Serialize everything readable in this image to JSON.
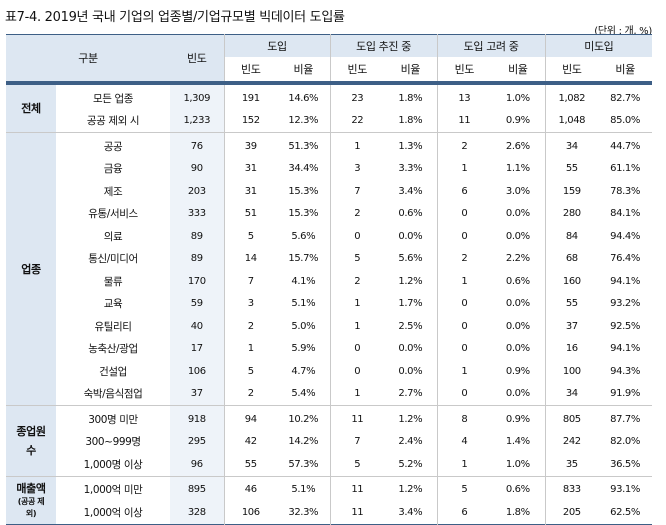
{
  "title": "표7-4. 2019년 국내 기업의 업종별/기업규모별 빅데이터 도입률",
  "unit": "(단위 : 개, %)",
  "header": {
    "category": "구분",
    "total": "빈도",
    "groups": [
      "도입",
      "도입 추진 중",
      "도입 고려 중",
      "미도입"
    ],
    "sub": [
      "빈도",
      "비율"
    ]
  },
  "sections": [
    {
      "name": "전체",
      "note": "",
      "rows": [
        {
          "label": "모든 업종",
          "n": "1,309",
          "v": [
            "191",
            "14.6%",
            "23",
            "1.8%",
            "13",
            "1.0%",
            "1,082",
            "82.7%"
          ]
        },
        {
          "label": "공공 제외 시",
          "n": "1,233",
          "v": [
            "152",
            "12.3%",
            "22",
            "1.8%",
            "11",
            "0.9%",
            "1,048",
            "85.0%"
          ]
        }
      ]
    },
    {
      "name": "업종",
      "note": "",
      "rows": [
        {
          "label": "공공",
          "n": "76",
          "v": [
            "39",
            "51.3%",
            "1",
            "1.3%",
            "2",
            "2.6%",
            "34",
            "44.7%"
          ]
        },
        {
          "label": "금융",
          "n": "90",
          "v": [
            "31",
            "34.4%",
            "3",
            "3.3%",
            "1",
            "1.1%",
            "55",
            "61.1%"
          ]
        },
        {
          "label": "제조",
          "n": "203",
          "v": [
            "31",
            "15.3%",
            "7",
            "3.4%",
            "6",
            "3.0%",
            "159",
            "78.3%"
          ]
        },
        {
          "label": "유통/서비스",
          "n": "333",
          "v": [
            "51",
            "15.3%",
            "2",
            "0.6%",
            "0",
            "0.0%",
            "280",
            "84.1%"
          ]
        },
        {
          "label": "의료",
          "n": "89",
          "v": [
            "5",
            "5.6%",
            "0",
            "0.0%",
            "0",
            "0.0%",
            "84",
            "94.4%"
          ]
        },
        {
          "label": "통신/미디어",
          "n": "89",
          "v": [
            "14",
            "15.7%",
            "5",
            "5.6%",
            "2",
            "2.2%",
            "68",
            "76.4%"
          ]
        },
        {
          "label": "물류",
          "n": "170",
          "v": [
            "7",
            "4.1%",
            "2",
            "1.2%",
            "1",
            "0.6%",
            "160",
            "94.1%"
          ]
        },
        {
          "label": "교육",
          "n": "59",
          "v": [
            "3",
            "5.1%",
            "1",
            "1.7%",
            "0",
            "0.0%",
            "55",
            "93.2%"
          ]
        },
        {
          "label": "유틸리티",
          "n": "40",
          "v": [
            "2",
            "5.0%",
            "1",
            "2.5%",
            "0",
            "0.0%",
            "37",
            "92.5%"
          ]
        },
        {
          "label": "농축산/광업",
          "n": "17",
          "v": [
            "1",
            "5.9%",
            "0",
            "0.0%",
            "0",
            "0.0%",
            "16",
            "94.1%"
          ]
        },
        {
          "label": "건설업",
          "n": "106",
          "v": [
            "5",
            "4.7%",
            "0",
            "0.0%",
            "1",
            "0.9%",
            "100",
            "94.3%"
          ]
        },
        {
          "label": "숙박/음식점업",
          "n": "37",
          "v": [
            "2",
            "5.4%",
            "1",
            "2.7%",
            "0",
            "0.0%",
            "34",
            "91.9%"
          ]
        }
      ]
    },
    {
      "name": "종업원수",
      "note": "",
      "rows": [
        {
          "label": "300명 미만",
          "n": "918",
          "v": [
            "94",
            "10.2%",
            "11",
            "1.2%",
            "8",
            "0.9%",
            "805",
            "87.7%"
          ]
        },
        {
          "label": "300~999명",
          "n": "295",
          "v": [
            "42",
            "14.2%",
            "7",
            "2.4%",
            "4",
            "1.4%",
            "242",
            "82.0%"
          ]
        },
        {
          "label": "1,000명 이상",
          "n": "96",
          "v": [
            "55",
            "57.3%",
            "5",
            "5.2%",
            "1",
            "1.0%",
            "35",
            "36.5%"
          ]
        }
      ]
    },
    {
      "name": "매출액",
      "note": "(공공 제외)",
      "rows": [
        {
          "label": "1,000억 미만",
          "n": "895",
          "v": [
            "46",
            "5.1%",
            "11",
            "1.2%",
            "5",
            "0.6%",
            "833",
            "93.1%"
          ]
        },
        {
          "label": "1,000억 이상",
          "n": "328",
          "v": [
            "106",
            "32.3%",
            "11",
            "3.4%",
            "6",
            "1.8%",
            "205",
            "62.5%"
          ]
        }
      ]
    }
  ]
}
